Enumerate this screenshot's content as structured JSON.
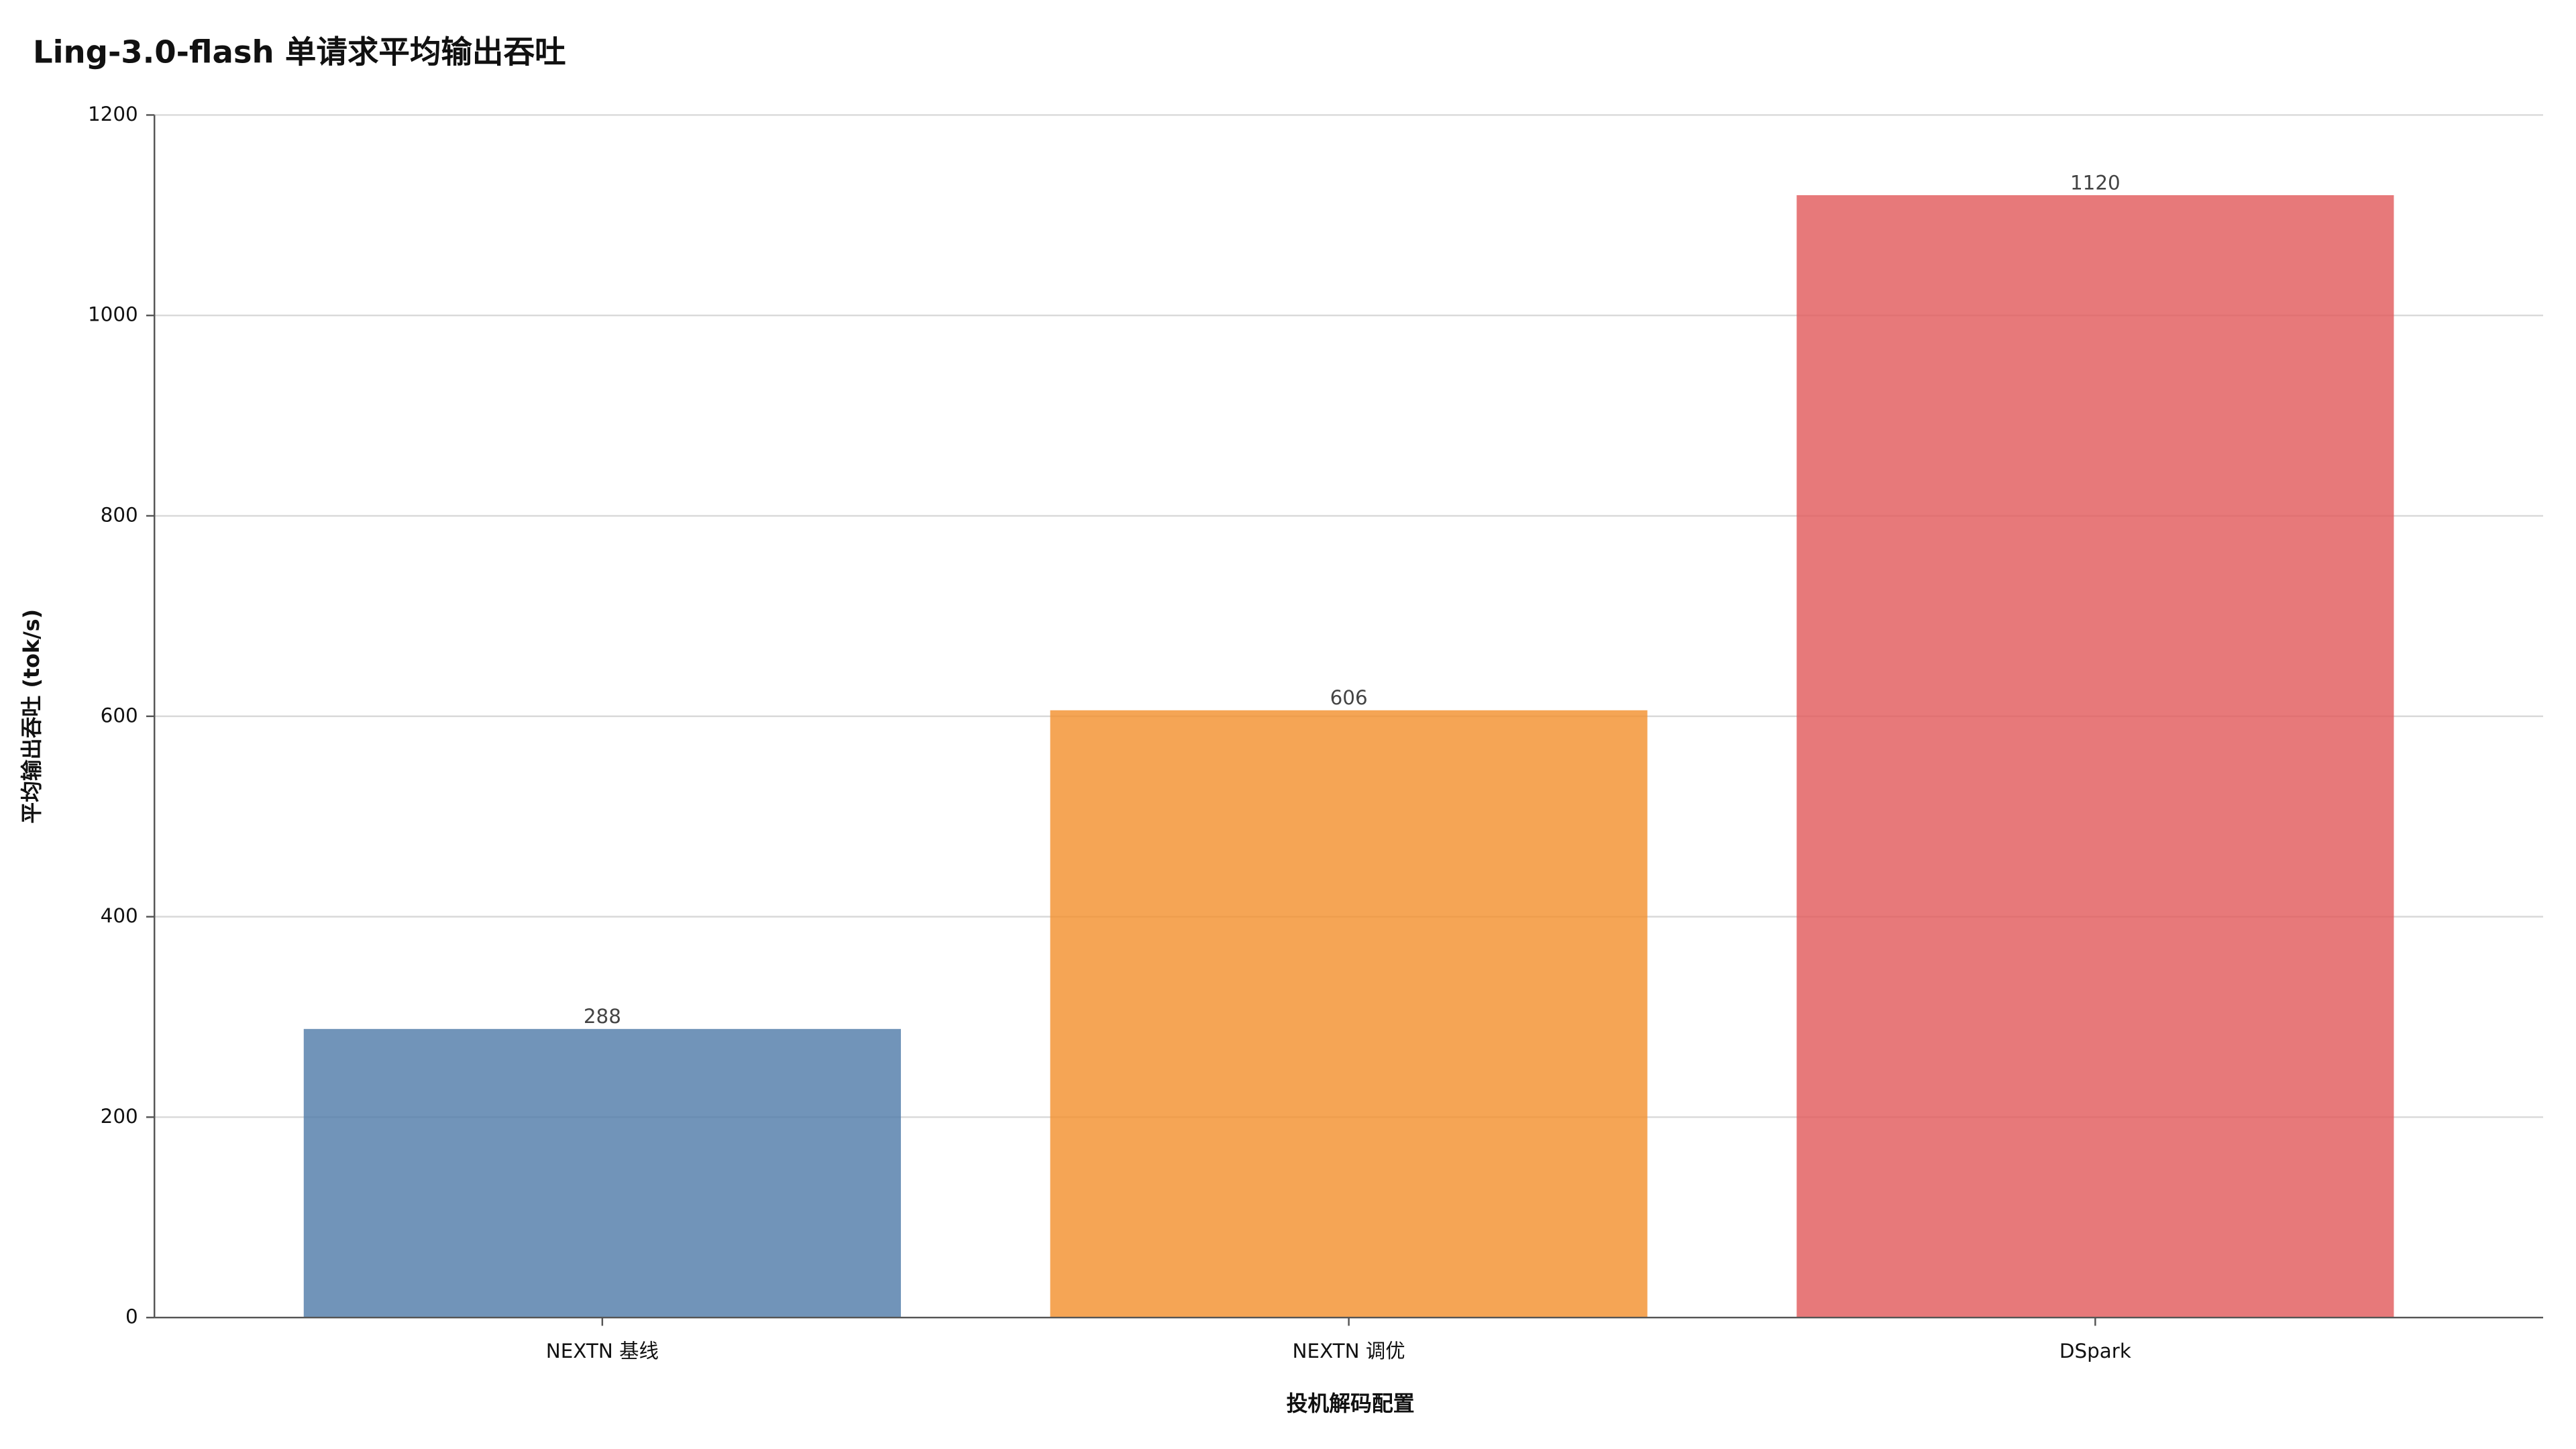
{
  "chart_data": {
    "type": "bar",
    "title": "Ling-3.0-flash 单请求平均输出吞吐",
    "x_label": "投机解码配置",
    "y_label": "平均输出吞吐 (tok/s)",
    "categories": [
      "NEXTN 基线",
      "NEXTN 调优",
      "DSpark"
    ],
    "values": [
      288,
      606,
      1120
    ],
    "colors": [
      "#4e79a7",
      "#f28e2b",
      "#e15759"
    ],
    "ylim": [
      0,
      1200
    ],
    "yticks": [
      0,
      200,
      400,
      600,
      800,
      1000,
      1200
    ],
    "grid": true
  }
}
